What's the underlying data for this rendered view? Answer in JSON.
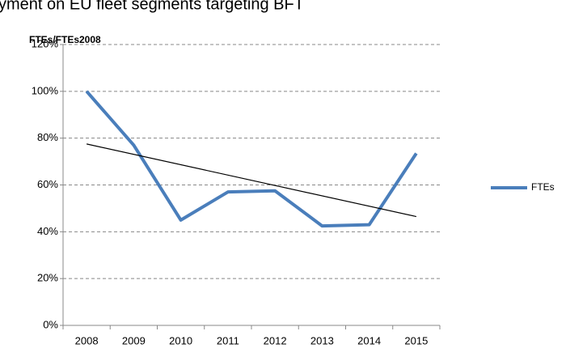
{
  "chart_data": {
    "type": "line",
    "title": "yment on EU fleet segments targeting BFT",
    "y_label": "FTEs/FTEs2008",
    "categories": [
      "2008",
      "2009",
      "2010",
      "2011",
      "2012",
      "2013",
      "2014",
      "2015"
    ],
    "series": [
      {
        "name": "FTEs",
        "color": "#4a7ebb",
        "values": [
          100,
          77,
          45,
          57,
          57.5,
          42.5,
          43,
          73.5
        ]
      }
    ],
    "trend": {
      "color": "#000000",
      "values": [
        77.5,
        46.5
      ]
    },
    "ylim": [
      0,
      120
    ],
    "yticks": [
      {
        "value": 0,
        "label": "0%"
      },
      {
        "value": 20,
        "label": "20%"
      },
      {
        "value": 40,
        "label": "40%"
      },
      {
        "value": 60,
        "label": "60%"
      },
      {
        "value": 80,
        "label": "80%"
      },
      {
        "value": 100,
        "label": "100%"
      },
      {
        "value": 120,
        "label": "120%"
      }
    ],
    "grid": true,
    "legend": "right"
  }
}
